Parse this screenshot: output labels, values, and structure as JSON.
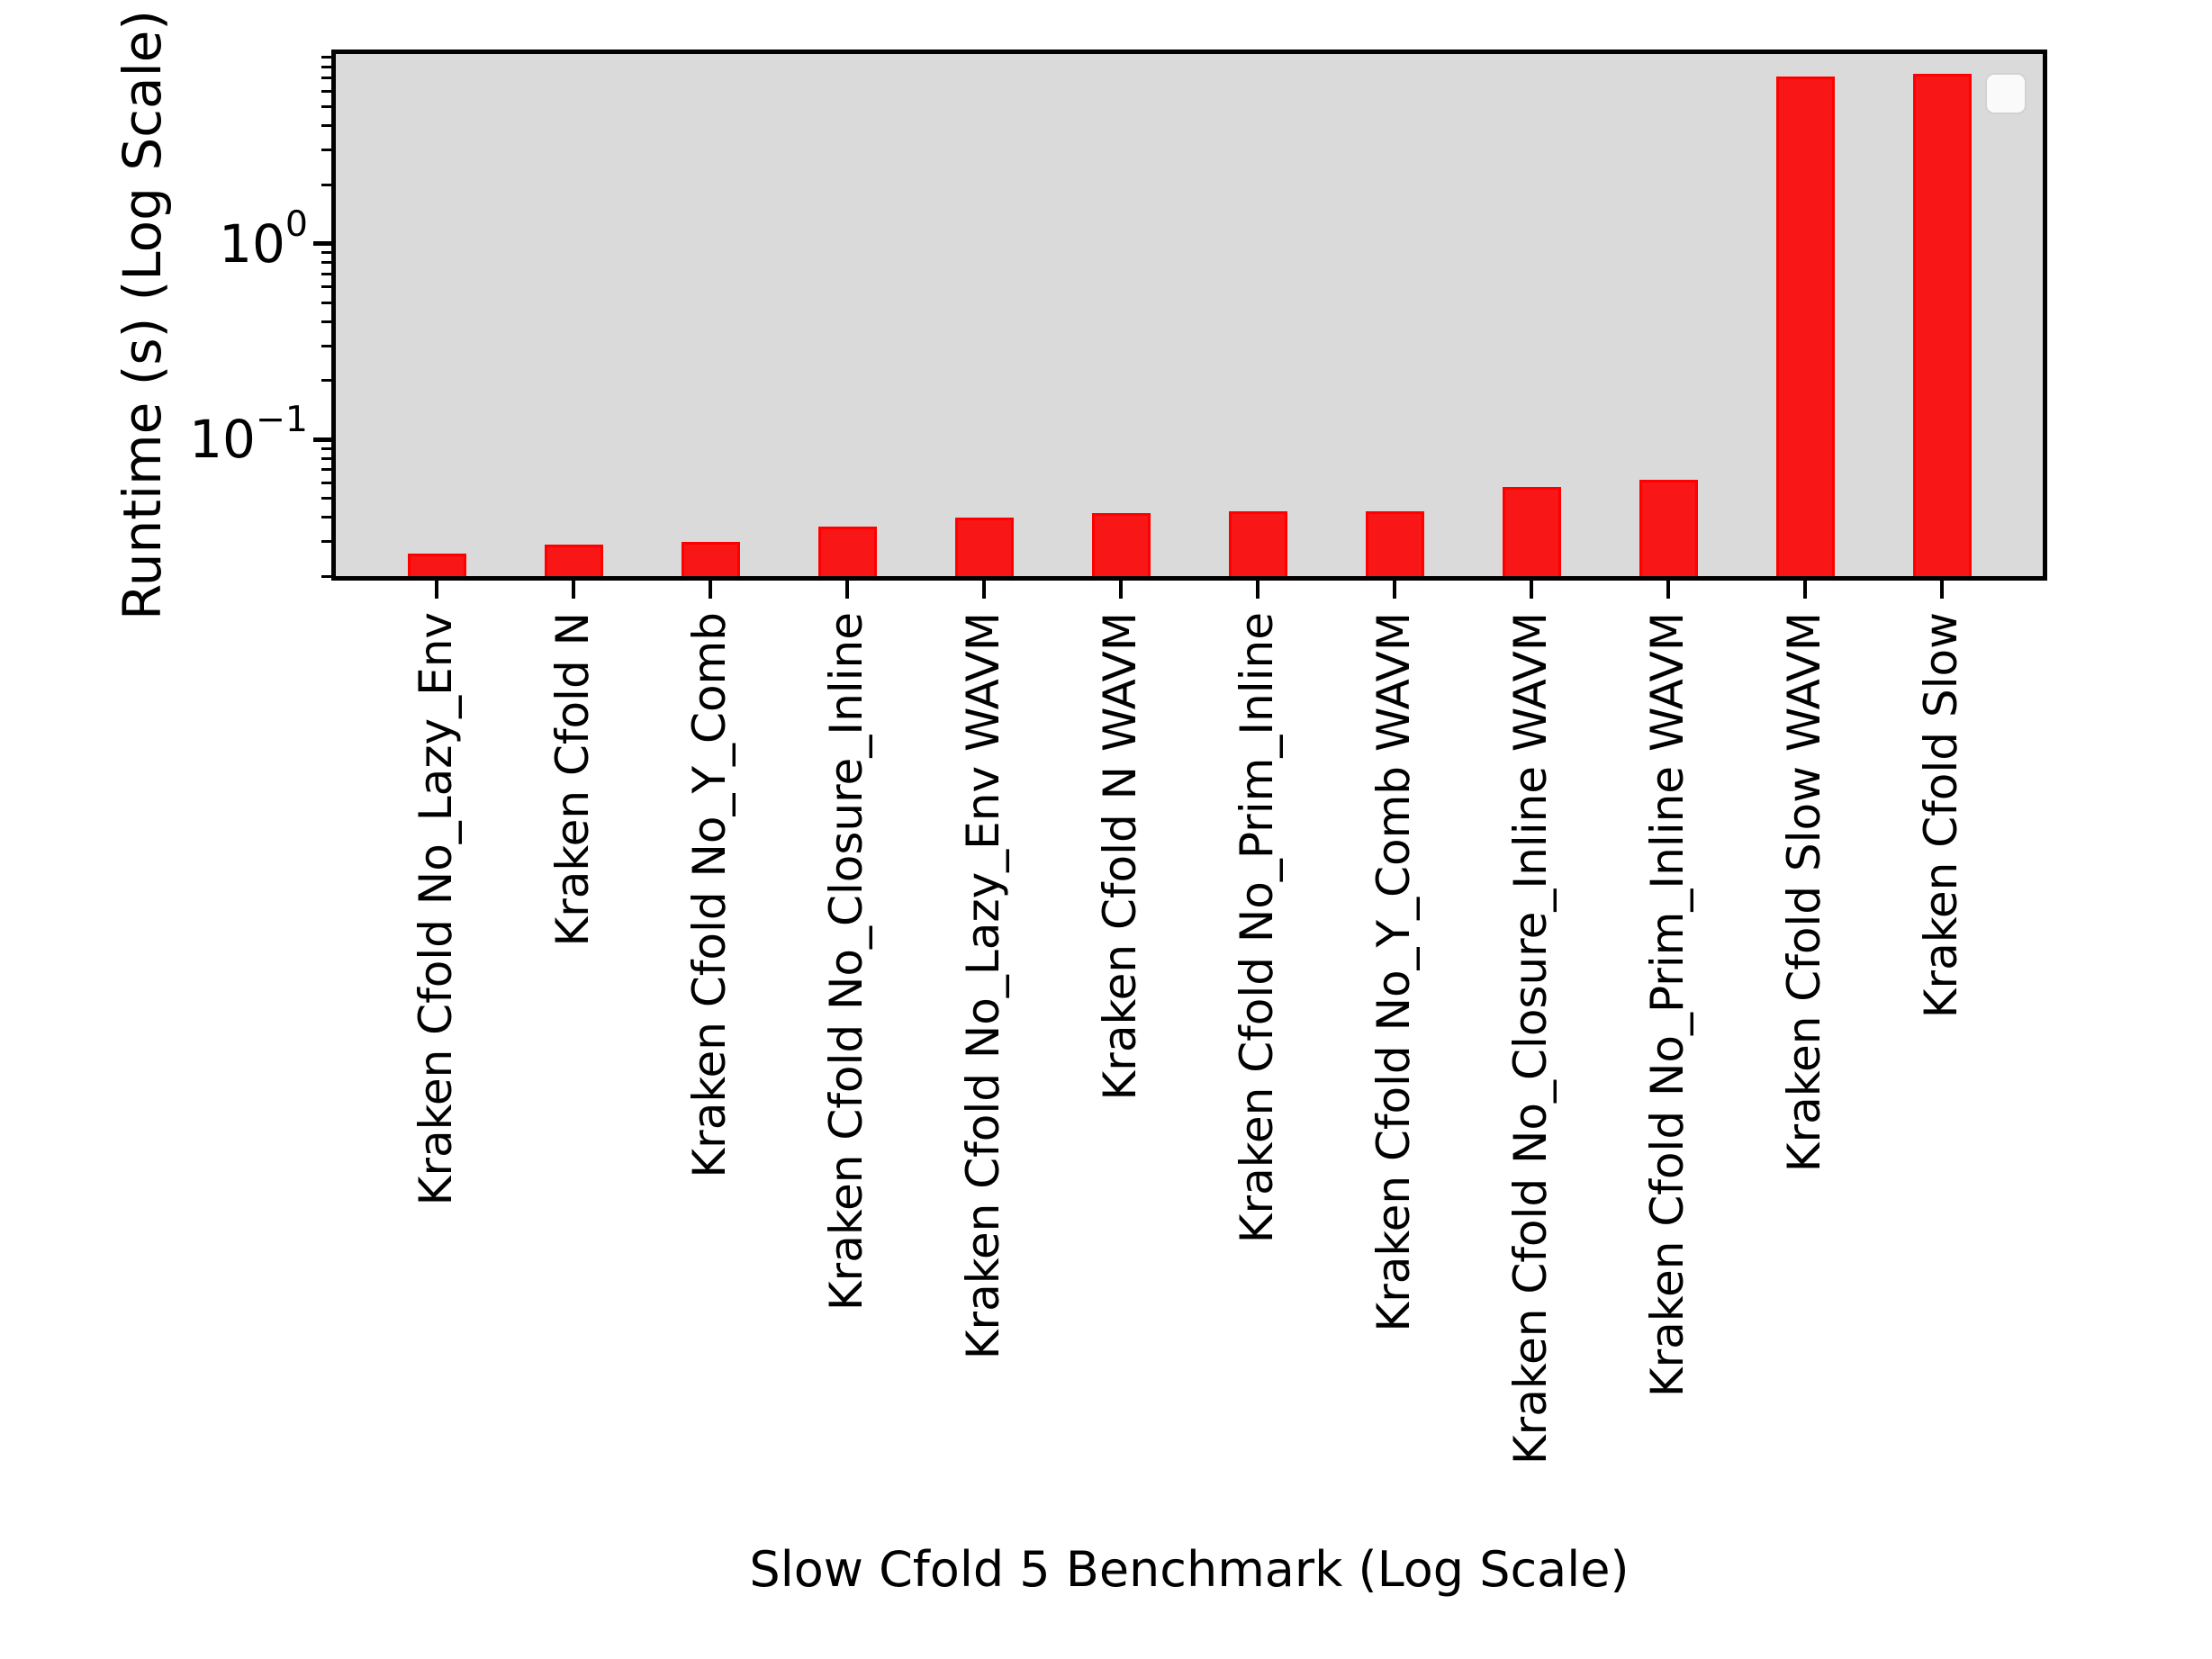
{
  "chart_data": {
    "type": "bar",
    "title": "",
    "xlabel": "Slow Cfold 5 Benchmark (Log Scale)",
    "ylabel": "Runtime (s) (Log Scale)",
    "yscale": "log",
    "ylim": [
      0.019,
      9.8
    ],
    "categories": [
      "Kraken Cfold No_Lazy_Env",
      "Kraken Cfold N",
      "Kraken Cfold No_Y_Comb",
      "Kraken Cfold No_Closure_Inline",
      "Kraken Cfold No_Lazy_Env WAVM",
      "Kraken Cfold N WAVM",
      "Kraken Cfold No_Prim_Inline",
      "Kraken Cfold No_Y_Comb WAVM",
      "Kraken Cfold No_Closure_Inline WAVM",
      "Kraken Cfold No_Prim_Inline WAVM",
      "Kraken Cfold Slow WAVM",
      "Kraken Cfold Slow"
    ],
    "values": [
      0.026,
      0.029,
      0.03,
      0.036,
      0.04,
      0.042,
      0.043,
      0.043,
      0.057,
      0.062,
      7.1,
      7.4
    ],
    "yticks": [
      {
        "value": 1,
        "base": "10",
        "exp": "0"
      },
      {
        "value": 0.1,
        "base": "10",
        "exp": "−1"
      }
    ],
    "legend": {
      "visible": true,
      "entries": []
    },
    "colors": {
      "bar_fill": "#f81616",
      "bar_edge": "#ff0000",
      "plot_bg": "#dadada",
      "spine": "#000000",
      "legend_bg": "rgba(255,255,255,0.85)",
      "legend_border": "#d2d2d2"
    },
    "grid": false,
    "legend_position": "upper right"
  }
}
